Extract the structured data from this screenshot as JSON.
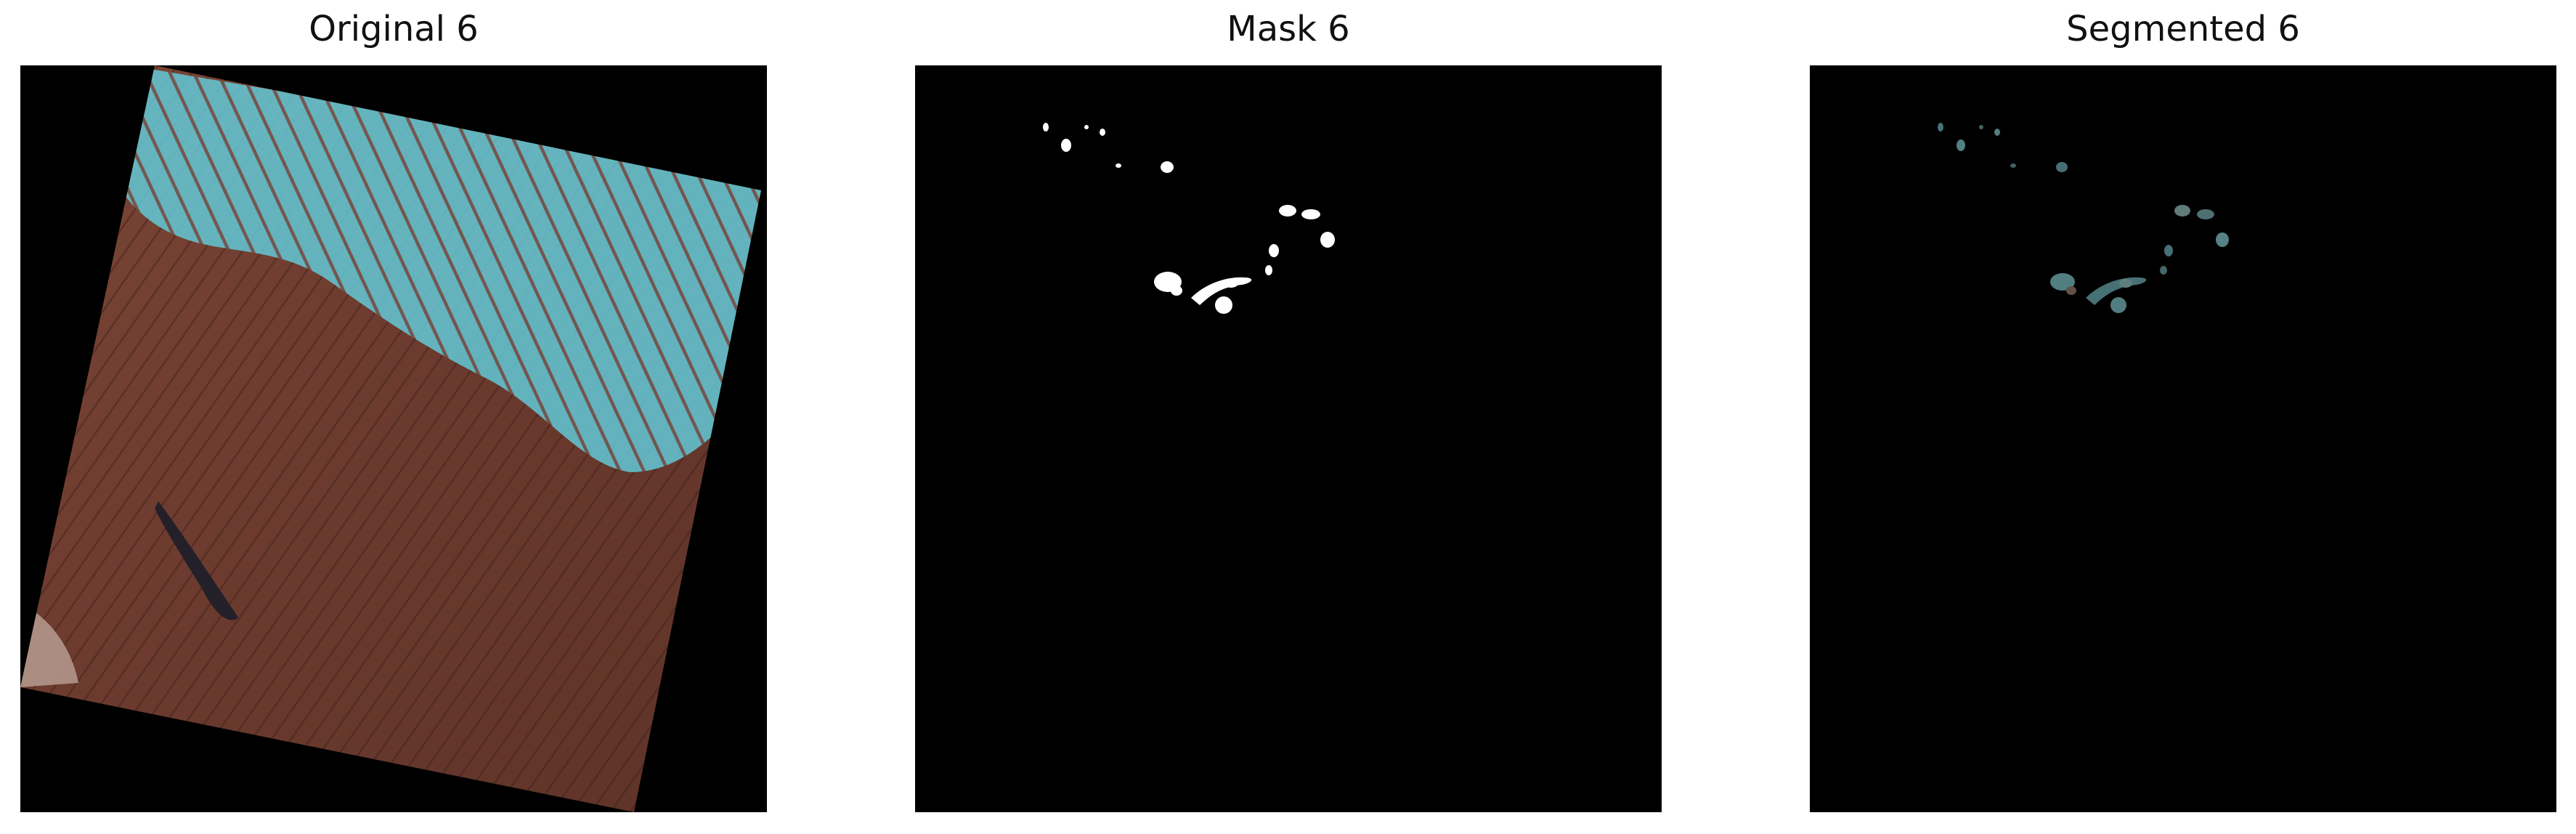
{
  "panels": [
    {
      "title": "Original 6",
      "kind": "original"
    },
    {
      "title": "Mask 6",
      "kind": "mask"
    },
    {
      "title": "Segmented 6",
      "kind": "segmented"
    }
  ],
  "colors": {
    "background": "#000000",
    "mask_foreground": "#ffffff",
    "terrain_base": "#6a3b2e",
    "snow": "#5fc7d4"
  }
}
